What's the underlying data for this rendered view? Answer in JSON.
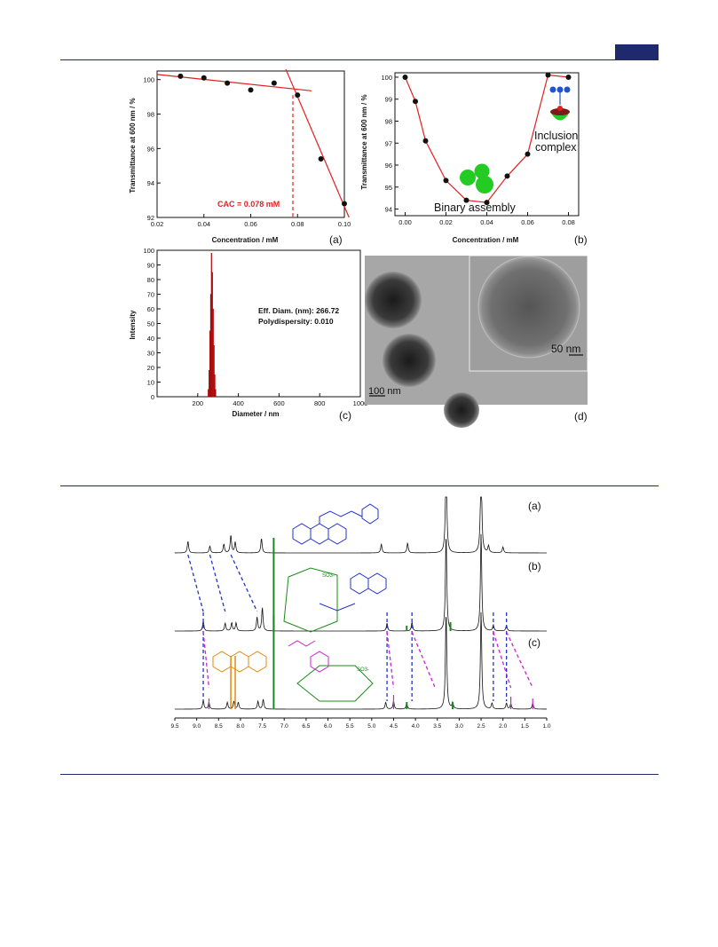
{
  "figure_top": {
    "panel_a": {
      "label": "(a)",
      "ylabel": "Transmittance at 600 nm / %",
      "xlabel": "Concentration / mM",
      "annotation": "CAC = 0.078 mM"
    },
    "panel_b": {
      "label": "(b)",
      "ylabel": "Transmittance at 600 nm / %",
      "xlabel": "Concentration / mM",
      "annotation_1": "Binary assembly",
      "annotation_2a": "Inclusion",
      "annotation_2b": "complex"
    },
    "panel_c": {
      "label": "(c)",
      "ylabel": "Intensity",
      "xlabel": "Diameter / nm",
      "info_1": "Eff. Diam. (nm): 266.72",
      "info_2": "Polydispersity: 0.010"
    },
    "panel_d": {
      "label": "(d)",
      "scale_1": "100 nm",
      "scale_2": "50 nm"
    }
  },
  "figure_nmr": {
    "label_a": "(a)",
    "label_b": "(b)",
    "label_c": "(c)",
    "chem_b_label": "SO3-",
    "chem_c_label": "SO3-"
  },
  "chart_data": [
    {
      "type": "scatter",
      "xlim": [
        0.02,
        0.1
      ],
      "ylim": [
        92,
        100.5
      ],
      "x_ticks": [
        "0.02",
        "0.04",
        "0.06",
        "0.08",
        "0.10"
      ],
      "y_ticks": [
        "92",
        "94",
        "96",
        "98",
        "100"
      ],
      "x": [
        0.03,
        0.04,
        0.05,
        0.06,
        0.07,
        0.08,
        0.09,
        0.1
      ],
      "y": [
        100.2,
        100.1,
        99.8,
        99.4,
        99.8,
        99.1,
        95.4,
        92.8
      ],
      "marker_color": "#111111",
      "fit_color": "#e02020",
      "fit_lines": [
        {
          "x": [
            0.02,
            0.086
          ],
          "y": [
            100.3,
            99.35
          ]
        },
        {
          "x": [
            0.075,
            0.102
          ],
          "y": [
            100.6,
            92.0
          ]
        }
      ],
      "cac_x": 0.078
    },
    {
      "type": "line",
      "xlim": [
        -0.005,
        0.085
      ],
      "ylim": [
        93.7,
        100.2
      ],
      "x_ticks": [
        "0.00",
        "0.02",
        "0.04",
        "0.06",
        "0.08"
      ],
      "y_ticks": [
        "94",
        "95",
        "96",
        "97",
        "98",
        "99",
        "100"
      ],
      "x": [
        0.0,
        0.005,
        0.01,
        0.02,
        0.03,
        0.04,
        0.05,
        0.06,
        0.07,
        0.08
      ],
      "y": [
        100.0,
        98.9,
        97.1,
        95.3,
        94.4,
        94.3,
        95.5,
        96.5,
        100.1,
        100.0
      ],
      "line_color": "#e02020",
      "marker_color": "#111111"
    },
    {
      "type": "bar",
      "xlim": [
        0,
        1000
      ],
      "ylim": [
        0,
        100
      ],
      "x_ticks": [
        "200",
        "400",
        "600",
        "800",
        "1000"
      ],
      "y_ticks": [
        "0",
        "10",
        "20",
        "30",
        "40",
        "50",
        "60",
        "70",
        "80",
        "90",
        "100"
      ],
      "x": [
        252,
        256,
        260,
        264,
        268,
        272,
        276,
        280,
        284,
        288
      ],
      "values": [
        5,
        18,
        45,
        70,
        98,
        85,
        60,
        35,
        15,
        5
      ],
      "bar_color": "#d01010"
    },
    {
      "type": "line",
      "xlim": [
        9.5,
        1.0
      ],
      "x_ticks": [
        "9.5",
        "9.0",
        "8.5",
        "8.0",
        "7.5",
        "7.0",
        "6.5",
        "6.0",
        "5.5",
        "5.0",
        "4.5",
        "4.0",
        "3.5",
        "3.0",
        "2.5",
        "2.0",
        "1.5",
        "1.0"
      ],
      "series": [
        {
          "color": "#111111",
          "peaks": [
            [
              9.2,
              0.6
            ],
            [
              8.7,
              0.35
            ],
            [
              8.38,
              0.45
            ],
            [
              8.22,
              0.9
            ],
            [
              8.12,
              0.55
            ],
            [
              7.52,
              0.75
            ],
            [
              4.78,
              0.45
            ],
            [
              4.18,
              0.5
            ],
            [
              3.3,
              5
            ],
            [
              2.5,
              5
            ],
            [
              2.33,
              0.35
            ],
            [
              2.0,
              0.3
            ]
          ]
        },
        {
          "color": "#111111",
          "peaks": [
            [
              8.85,
              0.5
            ],
            [
              8.35,
              0.4
            ],
            [
              8.2,
              0.42
            ],
            [
              8.1,
              0.42
            ],
            [
              7.62,
              0.7
            ],
            [
              7.5,
              1.2
            ],
            [
              4.65,
              0.4
            ],
            [
              4.08,
              0.45
            ],
            [
              3.3,
              5
            ],
            [
              2.5,
              5
            ],
            [
              2.22,
              0.3
            ],
            [
              1.92,
              0.3
            ]
          ]
        },
        {
          "color": "#111111",
          "peaks": [
            [
              8.85,
              0.45
            ],
            [
              8.72,
              0.35
            ],
            [
              8.3,
              0.35
            ],
            [
              8.15,
              0.4
            ],
            [
              8.05,
              0.35
            ],
            [
              7.6,
              0.4
            ],
            [
              7.48,
              0.5
            ],
            [
              4.68,
              0.35
            ],
            [
              4.5,
              0.4
            ],
            [
              4.2,
              0.3
            ],
            [
              3.3,
              5
            ],
            [
              3.15,
              0.3
            ],
            [
              2.5,
              5
            ],
            [
              2.25,
              0.3
            ],
            [
              1.92,
              0.3
            ],
            [
              1.82,
              0.28
            ],
            [
              1.32,
              0.3
            ]
          ]
        }
      ]
    }
  ]
}
